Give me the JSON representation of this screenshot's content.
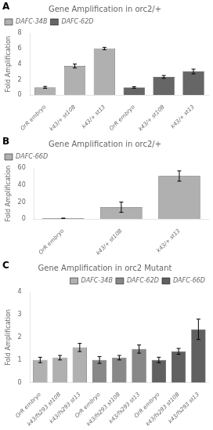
{
  "chart_data": [
    {
      "type": "bar",
      "title": "Gene Amplification in orc2/+",
      "annotation": "A",
      "y_label": "Fold Amplification",
      "categories": [
        "OrR embryo",
        "k43/+ st10B",
        "k43/+ st13",
        "OrR embryo",
        "k43/+ st10B",
        "k43/+ st13"
      ],
      "series": [
        {
          "name": "DAFC-34B",
          "color": "#b0b0b0",
          "values": [
            1.0,
            3.75,
            6.0,
            null,
            null,
            null
          ],
          "errors": [
            0.12,
            0.25,
            0.15,
            null,
            null,
            null
          ]
        },
        {
          "name": "DAFC-62D",
          "color": "#666666",
          "values": [
            null,
            null,
            null,
            1.0,
            2.35,
            3.05
          ],
          "errors": [
            null,
            null,
            null,
            0.1,
            0.18,
            0.3
          ]
        }
      ],
      "ylim": [
        0,
        8
      ],
      "yticks": [
        0,
        2,
        4,
        6,
        8
      ],
      "grid": false,
      "legend": "upper left"
    },
    {
      "type": "bar",
      "title": "Gene Amplification in orc2/+",
      "annotation": "B",
      "y_label": "Fold Amplification",
      "categories": [
        "OrR embryo",
        "k43/+ st10B",
        "k43/+ st13"
      ],
      "series": [
        {
          "name": "DAFC-66D",
          "color": "#b0b0b0",
          "values": [
            1.0,
            14.0,
            50.5
          ],
          "errors": [
            0.08,
            6.0,
            6.0
          ]
        }
      ],
      "ylim": [
        0,
        60
      ],
      "yticks": [
        0,
        20,
        40,
        60
      ],
      "grid": false,
      "legend": "upper left"
    },
    {
      "type": "bar",
      "title": "Gene Amplification in orc2 Mutant",
      "annotation": "C",
      "y_label": "Fold Amplification",
      "categories": [
        "OrR embryo",
        "k43/fs293 st10B",
        "k43/fs293 st13",
        "OrR embryo",
        "k43/fs293 st10B",
        "k43/fs293 st13",
        "OrR embryo",
        "k43/fs293 st10B",
        "k43/fs293 st13"
      ],
      "series": [
        {
          "name": "DAFC-34B",
          "color": "#b0b0b0",
          "values": [
            1.0,
            1.1,
            1.55,
            null,
            null,
            null,
            null,
            null,
            null
          ],
          "errors": [
            0.12,
            0.1,
            0.18,
            null,
            null,
            null,
            null,
            null,
            null
          ]
        },
        {
          "name": "DAFC-62D",
          "color": "#888888",
          "values": [
            null,
            null,
            null,
            1.0,
            1.1,
            1.48,
            null,
            null,
            null
          ],
          "errors": [
            null,
            null,
            null,
            0.15,
            0.1,
            0.18,
            null,
            null,
            null
          ]
        },
        {
          "name": "DAFC-66D",
          "color": "#606060",
          "values": [
            null,
            null,
            null,
            null,
            null,
            null,
            1.0,
            1.38,
            2.35
          ],
          "errors": [
            null,
            null,
            null,
            null,
            null,
            null,
            0.12,
            0.13,
            0.45
          ]
        }
      ],
      "ylim": [
        0,
        4
      ],
      "yticks": [
        0,
        1,
        2,
        3,
        4
      ],
      "grid": false,
      "legend": "upper right"
    }
  ]
}
